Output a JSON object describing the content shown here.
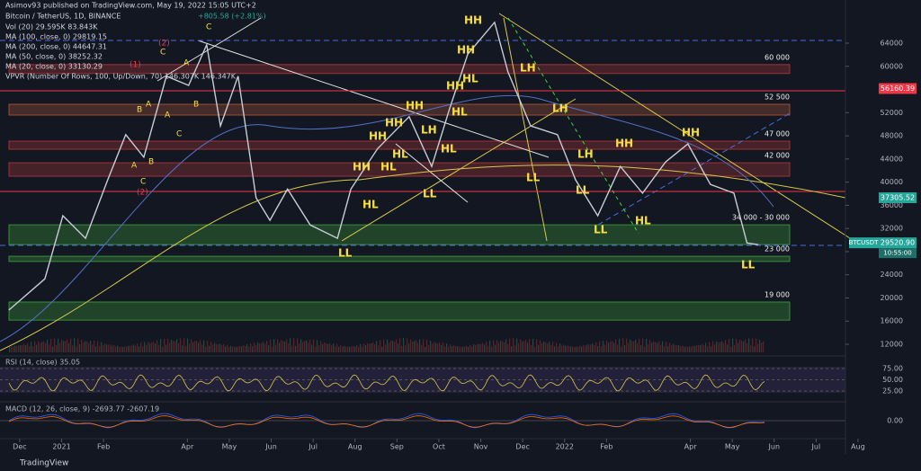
{
  "header": {
    "published": "Asimov93 published on TradingView.com, May 19, 2022 15:05 UTC+2",
    "symbol": "Bitcoin / TetherUS, 1D, BINANCE",
    "change": "+805.58 (+2.81%)",
    "indicators": [
      "Vol (20)  29.595K  83.843K",
      "MA (100, close, 0)  29819.15",
      "MA (200, close, 0)  44647.31",
      "MA (50, close, 0)  38252.32",
      "MA (20, close, 0)  33130.29",
      "VPVR (Number Of Rows, 100, Up/Down, 70)  146.307K  146.347K"
    ]
  },
  "chart_data": {
    "type": "line",
    "price": {
      "name": "BTCUSDT",
      "color": "#c8ccd4",
      "x": [
        -0.26,
        0.6,
        1.03,
        1.57,
        2.1,
        2.53,
        2.96,
        3.5,
        4.03,
        4.46,
        4.79,
        5.21,
        5.64,
        5.97,
        6.39,
        6.93,
        7.58,
        7.9,
        8.54,
        9.29,
        9.83,
        10.26,
        10.69,
        11.33,
        11.65,
        12.19,
        12.83,
        13.26,
        13.79,
        14.33,
        14.86,
        15.41,
        15.94,
        16.48,
        17.04,
        17.35,
        17.62
      ],
      "values": [
        17900,
        23300,
        34200,
        30300,
        40400,
        48200,
        44300,
        58300,
        56700,
        63700,
        49700,
        58300,
        37300,
        33400,
        38800,
        32600,
        30300,
        38800,
        45800,
        51300,
        42700,
        52800,
        62100,
        67600,
        59000,
        49700,
        48200,
        40400,
        34200,
        42700,
        38100,
        43500,
        46600,
        39600,
        38100,
        29500,
        29200
      ]
    },
    "xlim": [
      -0.47,
      19.7
    ],
    "xticks": [
      {
        "value": 0,
        "label": "Dec"
      },
      {
        "value": 1,
        "label": "2021"
      },
      {
        "value": 2,
        "label": "Feb"
      },
      {
        "value": 4,
        "label": "Apr"
      },
      {
        "value": 5,
        "label": "May"
      },
      {
        "value": 6,
        "label": "Jun"
      },
      {
        "value": 7,
        "label": "Jul"
      },
      {
        "value": 8,
        "label": "Aug"
      },
      {
        "value": 9,
        "label": "Sep"
      },
      {
        "value": 10,
        "label": "Oct"
      },
      {
        "value": 11,
        "label": "Nov"
      },
      {
        "value": 12,
        "label": "Dec"
      },
      {
        "value": 13,
        "label": "2022"
      },
      {
        "value": 14,
        "label": "Feb"
      },
      {
        "value": 16,
        "label": "Apr"
      },
      {
        "value": 17,
        "label": "May"
      },
      {
        "value": 18,
        "label": "Jun"
      },
      {
        "value": 19,
        "label": "Jul"
      },
      {
        "value": 20,
        "label": "Aug"
      }
    ],
    "ylim": [
      10140,
      71450
    ],
    "yticks": [
      64000,
      60000,
      52000,
      48000,
      44000,
      40000,
      36000,
      32000,
      28000,
      24000,
      20000,
      16000,
      12000
    ],
    "zones": [
      {
        "label": "60 000",
        "range": [
          58760,
          60300
        ],
        "color": "#b83a3a"
      },
      {
        "label": "52 500",
        "range": [
          51580,
          53440
        ],
        "color": "#b85a3a"
      },
      {
        "label": "47 000",
        "range": [
          45680,
          47080
        ],
        "color": "#b83a3a"
      },
      {
        "label": "42 000",
        "range": [
          41020,
          43340
        ],
        "color": "#b83a3a"
      },
      {
        "label": "34 000 - 30 000",
        "range": [
          29220,
          32630
        ],
        "color": "#3fa83f"
      },
      {
        "label": "23 000",
        "range": [
          26300,
          27200
        ],
        "color": "#3fa83f"
      },
      {
        "label": "19 000",
        "range": [
          16170,
          19300
        ],
        "color": "#3fa83f"
      }
    ],
    "price_tags": [
      {
        "value": 56160.39,
        "label": "56160.39",
        "color": "#f23645"
      },
      {
        "value": 37305.52,
        "label": "37305.52",
        "color": "#26a69a"
      },
      {
        "value": 29520.9,
        "label": "29520.90",
        "color": "#26a69a"
      }
    ],
    "symbol_tag": "BTCUSDT",
    "countdown": "10:55:00",
    "annotations": [
      "HH",
      "HH",
      "HL",
      "HH",
      "HL",
      "HH",
      "HH",
      "HH",
      "HH",
      "HL",
      "HL",
      "HL",
      "LH",
      "LL",
      "LH",
      "LH",
      "LH",
      "LL",
      "LL",
      "HH",
      "HL",
      "LL",
      "HH",
      "LL",
      "LL",
      "HL"
    ],
    "waves": [
      "C",
      "C",
      "A",
      "B",
      "A",
      "B",
      "A",
      "C",
      "A",
      "B",
      "C",
      "(2)",
      "(1)",
      "(2)"
    ],
    "rsi": {
      "title": "RSI (14, close)  35.05",
      "yticks": [
        {
          "value": 75,
          "label": "75.00"
        },
        {
          "value": 50,
          "label": "50.00"
        },
        {
          "value": 25,
          "label": "25.00"
        }
      ],
      "ylim": [
        5,
        95
      ]
    },
    "macd": {
      "title": "MACD (12, 26, close, 9)  -2693.77  -2607.19",
      "yticks": [
        {
          "value": 0,
          "label": "0.00"
        }
      ],
      "ylim": [
        -6000,
        6000
      ]
    },
    "footer": "TradingView"
  }
}
